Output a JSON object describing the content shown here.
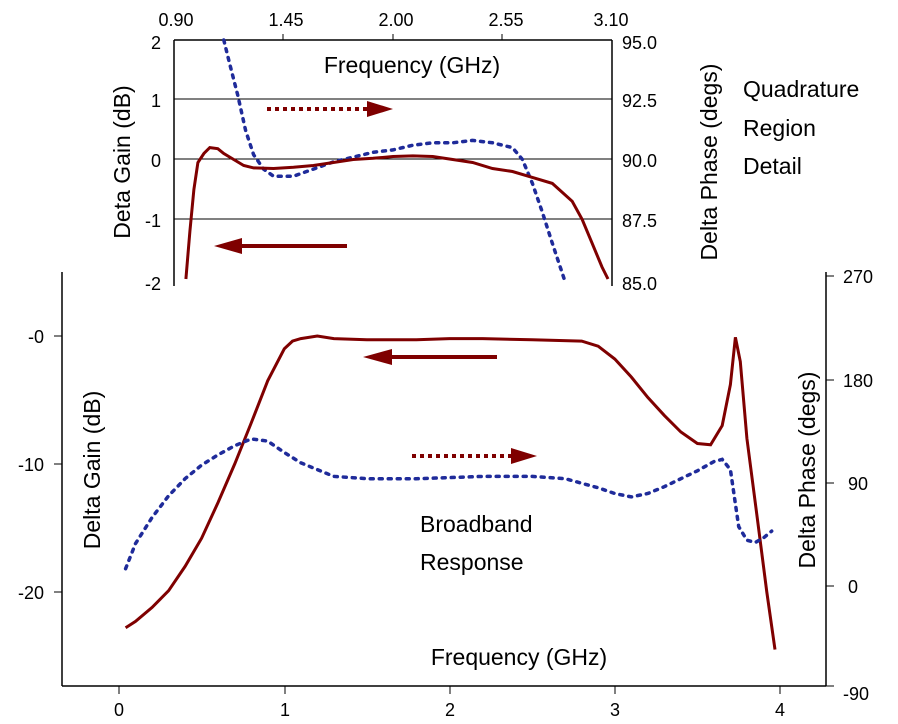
{
  "colors": {
    "gain": "#7f0000",
    "phase": "#1f2b9a",
    "axis": "#000000",
    "grid": "#000000"
  },
  "chart_data": [
    {
      "id": "broadband",
      "type": "line",
      "title": "",
      "annotation": [
        "Broadband",
        "Response"
      ],
      "xlabel": "Frequency (GHz)",
      "ylabel_left": "Delta Gain (dB)",
      "ylabel_right": "Delta Phase (degs)",
      "xlim": [
        0,
        4
      ],
      "ylim_left": [
        -27,
        5
      ],
      "ylim_right": [
        -90,
        270
      ],
      "xticks": [
        "0",
        "1",
        "2",
        "3",
        "4"
      ],
      "yticks_left": [
        "-0",
        "-10",
        "-20"
      ],
      "yticks_right": [
        "270",
        "180",
        "90",
        "0",
        "-90"
      ],
      "grid": false,
      "series": [
        {
          "axis": "left",
          "style": "solid",
          "color_key": "gain",
          "x": [
            0.04,
            0.1,
            0.2,
            0.3,
            0.4,
            0.5,
            0.6,
            0.7,
            0.8,
            0.9,
            1.0,
            1.05,
            1.1,
            1.2,
            1.3,
            1.5,
            1.8,
            2.0,
            2.2,
            2.5,
            2.8,
            2.9,
            3.0,
            3.1,
            3.2,
            3.3,
            3.4,
            3.5,
            3.58,
            3.65,
            3.7,
            3.73,
            3.76,
            3.8,
            3.86,
            3.92,
            3.97
          ],
          "y": [
            -22.8,
            -22.3,
            -21.2,
            -19.9,
            -18.0,
            -15.8,
            -13.0,
            -10.0,
            -6.8,
            -3.5,
            -1.0,
            -0.4,
            -0.2,
            0.0,
            -0.2,
            -0.3,
            -0.3,
            -0.2,
            -0.2,
            -0.3,
            -0.4,
            -0.8,
            -1.8,
            -3.2,
            -4.8,
            -6.2,
            -7.5,
            -8.4,
            -8.5,
            -7.0,
            -3.8,
            -0.1,
            -2.0,
            -8.0,
            -14.0,
            -20.0,
            -24.5
          ]
        },
        {
          "axis": "right",
          "style": "dotted",
          "color_key": "phase",
          "x": [
            0.04,
            0.1,
            0.2,
            0.3,
            0.4,
            0.5,
            0.6,
            0.7,
            0.8,
            0.9,
            1.0,
            1.1,
            1.2,
            1.3,
            1.5,
            1.8,
            2.0,
            2.2,
            2.5,
            2.7,
            2.9,
            3.0,
            3.1,
            3.2,
            3.3,
            3.4,
            3.5,
            3.55,
            3.6,
            3.65,
            3.7,
            3.75,
            3.8,
            3.85,
            3.9,
            3.95
          ],
          "y": [
            13,
            35,
            58,
            77,
            92,
            104,
            113,
            121,
            127,
            125,
            115,
            106,
            100,
            94,
            92,
            92,
            93,
            94,
            94,
            92,
            84,
            79,
            76,
            79,
            85,
            92,
            99,
            103,
            107,
            109,
            100,
            50,
            38,
            36,
            40,
            46
          ]
        }
      ]
    },
    {
      "id": "quadrature",
      "type": "line",
      "title": "",
      "annotation": [
        "Quadrature",
        "Region",
        "Detail"
      ],
      "xlabel": "Frequency (GHz)",
      "ylabel_left": "Deta Gain (dB)",
      "ylabel_right": "Delta Phase (degs)",
      "xlim": [
        0.9,
        3.1
      ],
      "ylim_left": [
        -2,
        2
      ],
      "ylim_right": [
        85,
        95
      ],
      "xticks": [
        "0.90",
        "1.45",
        "2.00",
        "2.55",
        "3.10"
      ],
      "yticks_left": [
        "2",
        "1",
        "0",
        "-1",
        "-2"
      ],
      "yticks_right": [
        "95.0",
        "92.5",
        "90.0",
        "87.5",
        "85.0"
      ],
      "grid": true,
      "series": [
        {
          "axis": "left",
          "style": "solid",
          "color_key": "gain",
          "x": [
            0.96,
            0.98,
            1.0,
            1.02,
            1.05,
            1.08,
            1.12,
            1.15,
            1.2,
            1.25,
            1.3,
            1.4,
            1.5,
            1.6,
            1.7,
            1.8,
            1.9,
            2.0,
            2.1,
            2.2,
            2.3,
            2.4,
            2.5,
            2.6,
            2.7,
            2.8,
            2.9,
            2.95,
            3.0,
            3.05,
            3.08
          ],
          "y": [
            -2.0,
            -1.2,
            -0.5,
            -0.05,
            0.1,
            0.2,
            0.18,
            0.1,
            0.0,
            -0.1,
            -0.14,
            -0.15,
            -0.13,
            -0.1,
            -0.05,
            0.0,
            0.02,
            0.05,
            0.06,
            0.05,
            0.0,
            -0.05,
            -0.15,
            -0.2,
            -0.3,
            -0.4,
            -0.7,
            -1.0,
            -1.4,
            -1.8,
            -2.0
          ]
        },
        {
          "axis": "right",
          "style": "dotted",
          "color_key": "phase",
          "x": [
            1.15,
            1.18,
            1.22,
            1.26,
            1.3,
            1.35,
            1.4,
            1.5,
            1.6,
            1.7,
            1.8,
            1.9,
            2.0,
            2.1,
            2.2,
            2.3,
            2.4,
            2.5,
            2.6,
            2.65,
            2.7,
            2.75,
            2.8,
            2.86
          ],
          "y": [
            95.0,
            94.0,
            92.7,
            91.2,
            90.2,
            89.6,
            89.3,
            89.3,
            89.6,
            89.9,
            90.1,
            90.3,
            90.4,
            90.6,
            90.7,
            90.7,
            90.8,
            90.7,
            90.5,
            90.0,
            89.0,
            87.8,
            86.5,
            85.0
          ]
        }
      ]
    }
  ]
}
